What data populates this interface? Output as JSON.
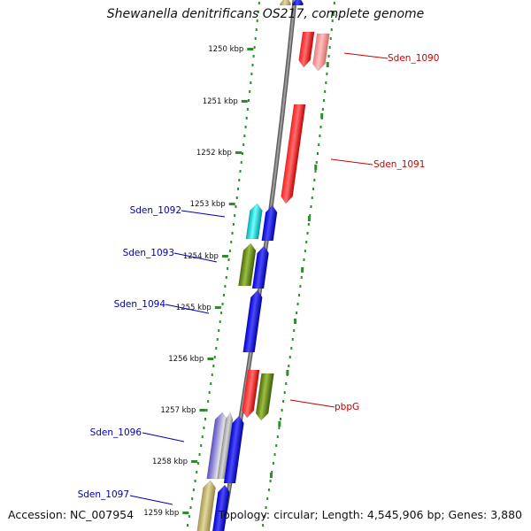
{
  "title": "Shewanella denitrificans OS217, complete genome",
  "footer": {
    "accession": "Accession: NC_007954",
    "topology": "Topology: circular; Length: 4,545,906 bp; Genes: 3,880"
  },
  "colors": {
    "forward_ticks": "#2e8b2e",
    "backbone": "#7a7a7a",
    "plus_label": "#cc0000",
    "minus_label": "#0000b0"
  },
  "scale": {
    "unit": "kbp",
    "ticks": [
      {
        "label": "1250 kbp"
      },
      {
        "label": "1251 kbp"
      },
      {
        "label": "1252 kbp"
      },
      {
        "label": "1253 kbp"
      },
      {
        "label": "1254 kbp"
      },
      {
        "label": "1255 kbp"
      },
      {
        "label": "1256 kbp"
      },
      {
        "label": "1257 kbp"
      },
      {
        "label": "1258 kbp"
      },
      {
        "label": "1259 kbp"
      }
    ]
  },
  "genes": [
    {
      "id": "Sden_1090",
      "strand": "+",
      "color": "red"
    },
    {
      "id": "Sden_1091",
      "strand": "+",
      "color": "red"
    },
    {
      "id": "Sden_1092",
      "strand": "-",
      "color": "cyan"
    },
    {
      "id": "Sden_1093",
      "strand": "-",
      "color": "olive"
    },
    {
      "id": "Sden_1094",
      "strand": "-",
      "color": "blue"
    },
    {
      "id": "pbpG",
      "strand": "+",
      "color": "red"
    },
    {
      "id": "Sden_1096",
      "strand": "-",
      "color": "purple"
    },
    {
      "id": "Sden_1097",
      "strand": "-",
      "color": "khaki"
    }
  ]
}
